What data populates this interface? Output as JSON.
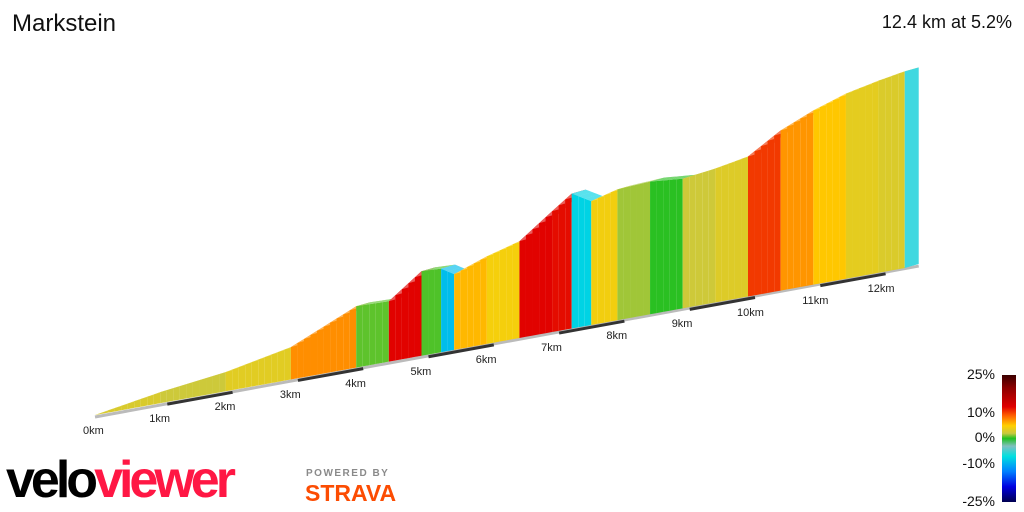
{
  "title": "Markstein",
  "summary": "12.4 km at 5.2%",
  "chart_data": {
    "type": "area",
    "title": "Markstein",
    "xlabel": "",
    "ylabel": "",
    "x_unit": "km",
    "xlim": [
      0,
      12.4
    ],
    "x_ticks": [
      "0km",
      "1km",
      "2km",
      "3km",
      "4km",
      "5km",
      "6km",
      "7km",
      "8km",
      "9km",
      "10km",
      "11km",
      "12km"
    ],
    "profile_km": [
      0,
      1,
      2,
      3,
      4,
      4.5,
      5,
      5.3,
      5.5,
      6,
      6.5,
      7,
      7.3,
      7.6,
      8,
      8.5,
      9,
      9.5,
      10,
      10.5,
      11,
      11.5,
      12,
      12.4
    ],
    "profile_relative_elevation_m": [
      0,
      36,
      63,
      106,
      201,
      198,
      277,
      274,
      248,
      287,
      317,
      396,
      442,
      406,
      429,
      435,
      425,
      439,
      459,
      525,
      571,
      607,
      630,
      645
    ],
    "color_scale": {
      "label_ticks": [
        "25%",
        "10%",
        "0%",
        "-10%",
        "-25%"
      ],
      "range": [
        -25,
        25
      ],
      "colors": [
        "#3a0000",
        "#8b0000",
        "#e00000",
        "#ff6000",
        "#ffd000",
        "#c8c840",
        "#20c020",
        "#80c0c0",
        "#00e0e0",
        "#0080ff",
        "#0000e0",
        "#000050"
      ]
    }
  },
  "branding": {
    "logo_part1": "velo",
    "logo_part2": "viewer",
    "powered_by": "POWERED BY",
    "strava": "STRAVA"
  }
}
